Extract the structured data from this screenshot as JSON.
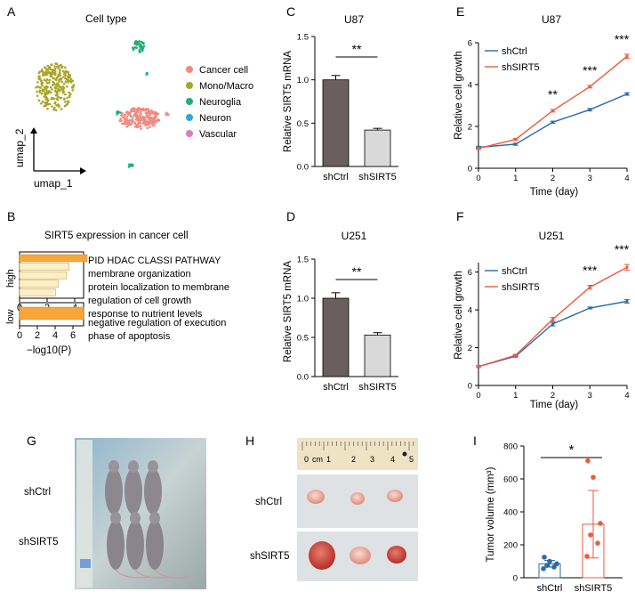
{
  "panel_letters": {
    "a": "A",
    "b": "B",
    "c": "C",
    "d": "D",
    "e": "E",
    "f": "F",
    "g": "G",
    "h": "H",
    "i": "I"
  },
  "colors": {
    "cancer": "#f08a80",
    "mono": "#a9a52a",
    "neuroglia": "#1fae76",
    "neuron": "#2ea6d8",
    "vascular": "#d67fbf",
    "bar_ctrl": "#6b5e5e",
    "bar_sirt5": "#d9d9d9",
    "line_ctrl": "#2b6aa8",
    "line_sirt5": "#ee5a3c",
    "go_fill": "#f7a637",
    "go_light": "#fbf0c6",
    "tumor_ctrl": "#2b6aa8",
    "tumor_sirt5": "#ee5a3c"
  },
  "chart_data": [
    {
      "id": "A",
      "type": "scatter",
      "title": "Cell type",
      "xlabel": "umap_1",
      "ylabel": "umap_2",
      "legend": [
        "Cancer cell",
        "Mono/Macro",
        "Neuroglia",
        "Neuron",
        "Vascular"
      ],
      "legend_position": "right"
    },
    {
      "id": "B",
      "type": "bar",
      "title": "SIRT5 expression in cancer cell",
      "xlabel": "−log10(P)",
      "groups": [
        {
          "name": "high",
          "categories": [
            "PID HDAC CLASSI PATHWAY",
            "membrane organization",
            "protein localization to membrane",
            "regulation of cell growth",
            "response to nutrient levels"
          ],
          "values": [
            4.9,
            3.6,
            3.4,
            2.8,
            2.6
          ],
          "xticks": [
            0,
            2,
            4
          ]
        },
        {
          "name": "low",
          "categories": [
            "negative regulation of execution phase of apoptosis"
          ],
          "values": [
            7.2
          ],
          "xticks": [
            0,
            2,
            4,
            6
          ]
        }
      ]
    },
    {
      "id": "C",
      "type": "bar",
      "title": "U87",
      "ylabel": "Relative SIRT5 mRNA",
      "categories": [
        "shCtrl",
        "shSIRT5"
      ],
      "values": [
        1.0,
        0.42
      ],
      "errors": [
        0.05,
        0.02
      ],
      "ylim": [
        0,
        1.5
      ],
      "yticks": [
        "0.0",
        "0.5",
        "1.0",
        "1.5"
      ],
      "significance": "**"
    },
    {
      "id": "D",
      "type": "bar",
      "title": "U251",
      "ylabel": "Relative SIRT5 mRNA",
      "categories": [
        "shCtrl",
        "shSIRT5"
      ],
      "values": [
        1.0,
        0.53
      ],
      "errors": [
        0.07,
        0.03
      ],
      "ylim": [
        0,
        1.5
      ],
      "yticks": [
        "0.0",
        "0.5",
        "1.0",
        "1.5"
      ],
      "significance": "**"
    },
    {
      "id": "E",
      "type": "line",
      "title": "U87",
      "xlabel": "Time (day)",
      "ylabel": "Relative cell growth",
      "x": [
        0,
        1,
        2,
        3,
        4
      ],
      "ylim": [
        0,
        6
      ],
      "xticks": [
        0,
        1,
        2,
        3,
        4
      ],
      "yticks": [
        0,
        2,
        4,
        6
      ],
      "series": [
        {
          "name": "shCtrl",
          "values": [
            1.0,
            1.15,
            2.2,
            2.8,
            3.55
          ],
          "errors": [
            0.05,
            0.05,
            0.05,
            0.06,
            0.06
          ]
        },
        {
          "name": "shSIRT5",
          "values": [
            0.95,
            1.38,
            2.75,
            3.9,
            5.35
          ],
          "errors": [
            0.05,
            0.05,
            0.06,
            0.06,
            0.1
          ]
        }
      ],
      "annotations": [
        {
          "x": 2,
          "text": "**"
        },
        {
          "x": 3,
          "text": "***"
        },
        {
          "x": 4,
          "text": "***"
        }
      ]
    },
    {
      "id": "F",
      "type": "line",
      "title": "U251",
      "xlabel": "Time (day)",
      "ylabel": "Relative cell growth",
      "x": [
        0,
        1,
        2,
        3,
        4
      ],
      "ylim": [
        0,
        6.5
      ],
      "xticks": [
        0,
        1,
        2,
        3,
        4
      ],
      "yticks": [
        0,
        2,
        4,
        6
      ],
      "series": [
        {
          "name": "shCtrl",
          "values": [
            1.0,
            1.55,
            3.25,
            4.1,
            4.45
          ],
          "errors": [
            0.05,
            0.05,
            0.1,
            0.05,
            0.1
          ]
        },
        {
          "name": "shSIRT5",
          "values": [
            1.0,
            1.6,
            3.5,
            5.2,
            6.25
          ],
          "errors": [
            0.05,
            0.05,
            0.1,
            0.1,
            0.15
          ]
        }
      ],
      "annotations": [
        {
          "x": 3,
          "text": "***"
        },
        {
          "x": 4,
          "text": "***"
        }
      ]
    },
    {
      "id": "I",
      "type": "bar",
      "ylabel": "Tumor volume (mm³)",
      "categories": [
        "shCtrl",
        "shSIRT5"
      ],
      "values": [
        85,
        325
      ],
      "errors": [
        20,
        205
      ],
      "points": [
        [
          55,
          65,
          75,
          85,
          100,
          125
        ],
        [
          130,
          210,
          260,
          330,
          610,
          710
        ]
      ],
      "ylim": [
        0,
        800
      ],
      "yticks": [
        0,
        200,
        400,
        600,
        800
      ],
      "significance": "*"
    }
  ],
  "photos": {
    "g": {
      "rows": [
        "shCtrl",
        "shSIRT5"
      ]
    },
    "h": {
      "rows": [
        "shCtrl",
        "shSIRT5"
      ],
      "ruler": [
        "0",
        "cm",
        "1",
        "2",
        "3",
        "4",
        "5"
      ]
    }
  }
}
